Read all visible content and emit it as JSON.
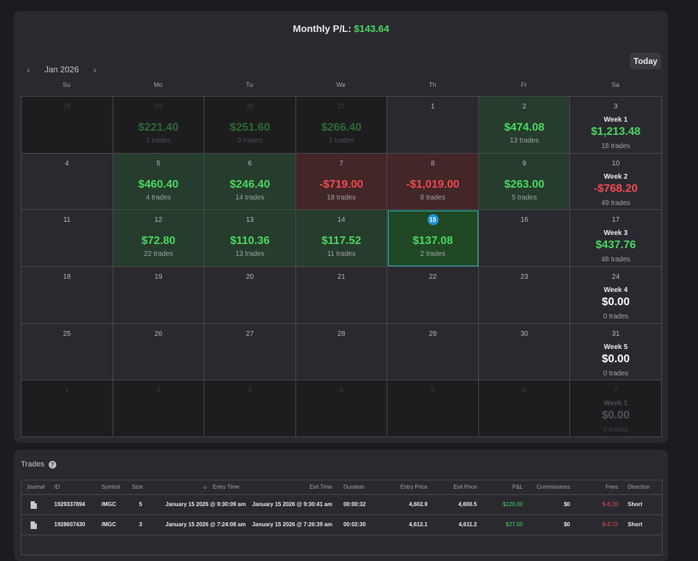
{
  "calendar": {
    "monthly_label": "Monthly P/L:",
    "monthly_value": "$143.64",
    "month": "Jan 2026",
    "today_label": "Today",
    "weekdays": [
      "Su",
      "Mo",
      "Tu",
      "We",
      "Th",
      "Fr",
      "Sa"
    ],
    "week_label_prefix": "Week",
    "cells": [
      {
        "day": "28",
        "state": "other"
      },
      {
        "day": "29",
        "state": "other",
        "pl": "$221.40",
        "sign": "pos",
        "trades": "1 trades"
      },
      {
        "day": "30",
        "state": "other",
        "pl": "$251.60",
        "sign": "pos",
        "trades": "3 trades"
      },
      {
        "day": "31",
        "state": "other",
        "pl": "$266.40",
        "sign": "pos",
        "trades": "1 trades"
      },
      {
        "day": "1",
        "state": "normal"
      },
      {
        "day": "2",
        "state": "win",
        "pl": "$474.08",
        "sign": "pos",
        "trades": "13 trades"
      },
      {
        "day": "3",
        "state": "normal",
        "week": "Week 1",
        "wpl": "$1,213.48",
        "wsign": "pos",
        "wtrades": "18 trades"
      },
      {
        "day": "4",
        "state": "normal"
      },
      {
        "day": "5",
        "state": "win",
        "pl": "$460.40",
        "sign": "pos",
        "trades": "4 trades"
      },
      {
        "day": "6",
        "state": "win",
        "pl": "$246.40",
        "sign": "pos",
        "trades": "14 trades"
      },
      {
        "day": "7",
        "state": "loss",
        "pl": "-$719.00",
        "sign": "neg",
        "trades": "18 trades"
      },
      {
        "day": "8",
        "state": "loss",
        "pl": "-$1,019.00",
        "sign": "neg",
        "trades": "8 trades"
      },
      {
        "day": "9",
        "state": "win",
        "pl": "$263.00",
        "sign": "pos",
        "trades": "5 trades"
      },
      {
        "day": "10",
        "state": "normal",
        "week": "Week 2",
        "wpl": "-$768.20",
        "wsign": "neg",
        "wtrades": "49 trades"
      },
      {
        "day": "11",
        "state": "normal"
      },
      {
        "day": "12",
        "state": "win",
        "pl": "$72.80",
        "sign": "pos",
        "trades": "22 trades"
      },
      {
        "day": "13",
        "state": "win",
        "pl": "$110.36",
        "sign": "pos",
        "trades": "13 trades"
      },
      {
        "day": "14",
        "state": "win",
        "pl": "$117.52",
        "sign": "pos",
        "trades": "11 trades"
      },
      {
        "day": "15",
        "state": "today",
        "pl": "$137.08",
        "sign": "pos",
        "trades": "2 trades"
      },
      {
        "day": "16",
        "state": "normal"
      },
      {
        "day": "17",
        "state": "normal",
        "week": "Week 3",
        "wpl": "$437.76",
        "wsign": "pos",
        "wtrades": "48 trades"
      },
      {
        "day": "18",
        "state": "normal"
      },
      {
        "day": "19",
        "state": "normal"
      },
      {
        "day": "20",
        "state": "normal"
      },
      {
        "day": "21",
        "state": "normal"
      },
      {
        "day": "22",
        "state": "normal"
      },
      {
        "day": "23",
        "state": "normal"
      },
      {
        "day": "24",
        "state": "normal",
        "week": "Week 4",
        "wpl": "$0.00",
        "wsign": "zero",
        "wtrades": "0 trades"
      },
      {
        "day": "25",
        "state": "normal"
      },
      {
        "day": "26",
        "state": "normal"
      },
      {
        "day": "27",
        "state": "normal"
      },
      {
        "day": "28",
        "state": "normal"
      },
      {
        "day": "29",
        "state": "normal"
      },
      {
        "day": "30",
        "state": "normal"
      },
      {
        "day": "31",
        "state": "normal",
        "week": "Week 5",
        "wpl": "$0.00",
        "wsign": "zero",
        "wtrades": "0 trades"
      },
      {
        "day": "1",
        "state": "other"
      },
      {
        "day": "2",
        "state": "other"
      },
      {
        "day": "3",
        "state": "other"
      },
      {
        "day": "4",
        "state": "other"
      },
      {
        "day": "5",
        "state": "other"
      },
      {
        "day": "6",
        "state": "other"
      },
      {
        "day": "7",
        "state": "other",
        "week": "Week 1",
        "wpl": "$0.00",
        "wsign": "zero",
        "wtrades": "0 trades"
      }
    ]
  },
  "trades": {
    "title": "Trades",
    "help": "?",
    "headers": {
      "journal": "Journal",
      "id": "ID",
      "symbol": "Symbol",
      "size": "Size",
      "entry_time": "Entry Time",
      "exit_time": "Exit Time",
      "duration": "Duration",
      "entry_price": "Entry Price",
      "exit_price": "Exit Price",
      "pnl": "P&L",
      "commissions": "Commissions",
      "fees": "Fees",
      "direction": "Direction"
    },
    "sort_arrow": "🡣",
    "rows": [
      {
        "id": "1929337894",
        "symbol": "/MGC",
        "size": "5",
        "entry_time": "January 15 2026 @ 9:30:09 am",
        "exit_time": "January 15 2026 @ 9:30:41 am",
        "duration": "00:00:32",
        "entry_price": "4,602.9",
        "exit_price": "4,600.5",
        "pnl": "$120.00",
        "commissions": "$0",
        "fees": "$-6.20",
        "direction": "Short"
      },
      {
        "id": "1928607430",
        "symbol": "/MGC",
        "size": "3",
        "entry_time": "January 15 2026 @ 7:24:08 am",
        "exit_time": "January 15 2026 @ 7:26:39 am",
        "duration": "00:02:30",
        "entry_price": "4,612.1",
        "exit_price": "4,611.2",
        "pnl": "$27.00",
        "commissions": "$0",
        "fees": "$-3.72",
        "direction": "Short"
      }
    ]
  }
}
